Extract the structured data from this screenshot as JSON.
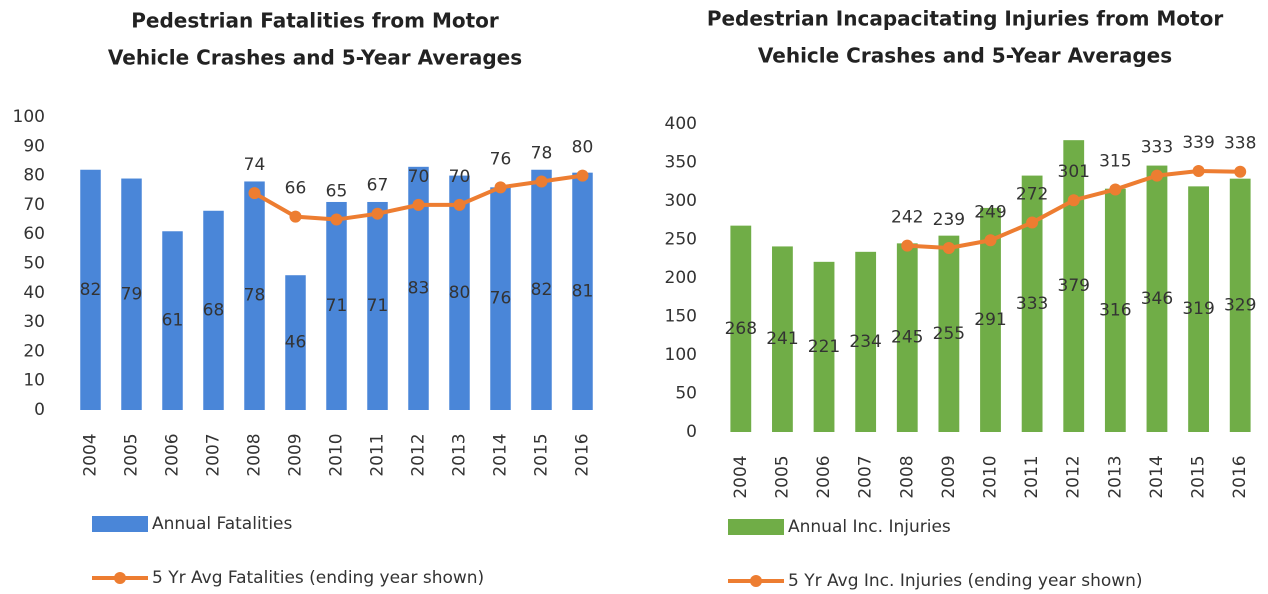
{
  "chart_data": [
    {
      "type": "bar-line",
      "title": [
        "Pedestrian Fatalities from Motor",
        "Vehicle Crashes and 5-Year Averages"
      ],
      "categories": [
        "2004",
        "2005",
        "2006",
        "2007",
        "2008",
        "2009",
        "2010",
        "2011",
        "2012",
        "2013",
        "2014",
        "2015",
        "2016"
      ],
      "series": [
        {
          "name": "Annual Fatalities",
          "type": "bar",
          "color": "#4a86d8",
          "values": [
            82,
            79,
            61,
            68,
            78,
            46,
            71,
            71,
            83,
            80,
            76,
            82,
            81
          ]
        },
        {
          "name": "5 Yr Avg Fatalities (ending year shown)",
          "type": "line",
          "color": "#ed7d31",
          "values": [
            null,
            null,
            null,
            null,
            74,
            66,
            65,
            67,
            70,
            70,
            76,
            78,
            80
          ]
        }
      ],
      "ylim": [
        0,
        100
      ],
      "yticks": [
        0,
        10,
        20,
        30,
        40,
        50,
        60,
        70,
        80,
        90,
        100
      ],
      "grid": false
    },
    {
      "type": "bar-line",
      "title": [
        "Pedestrian Incapacitating Injuries from Motor",
        "Vehicle Crashes and 5-Year Averages"
      ],
      "categories": [
        "2004",
        "2005",
        "2006",
        "2007",
        "2008",
        "2009",
        "2010",
        "2011",
        "2012",
        "2013",
        "2014",
        "2015",
        "2016"
      ],
      "series": [
        {
          "name": "Annual Inc. Injuries",
          "type": "bar",
          "color": "#70ad47",
          "values": [
            268,
            241,
            221,
            234,
            245,
            255,
            291,
            333,
            379,
            316,
            346,
            319,
            329
          ]
        },
        {
          "name": "5 Yr Avg Inc. Injuries (ending year shown)",
          "type": "line",
          "color": "#ed7d31",
          "values": [
            null,
            null,
            null,
            null,
            242,
            239,
            249,
            272,
            301,
            315,
            333,
            339,
            338
          ]
        }
      ],
      "ylim": [
        0,
        400
      ],
      "yticks": [
        0,
        50,
        100,
        150,
        200,
        250,
        300,
        350,
        400
      ],
      "grid": false
    }
  ]
}
